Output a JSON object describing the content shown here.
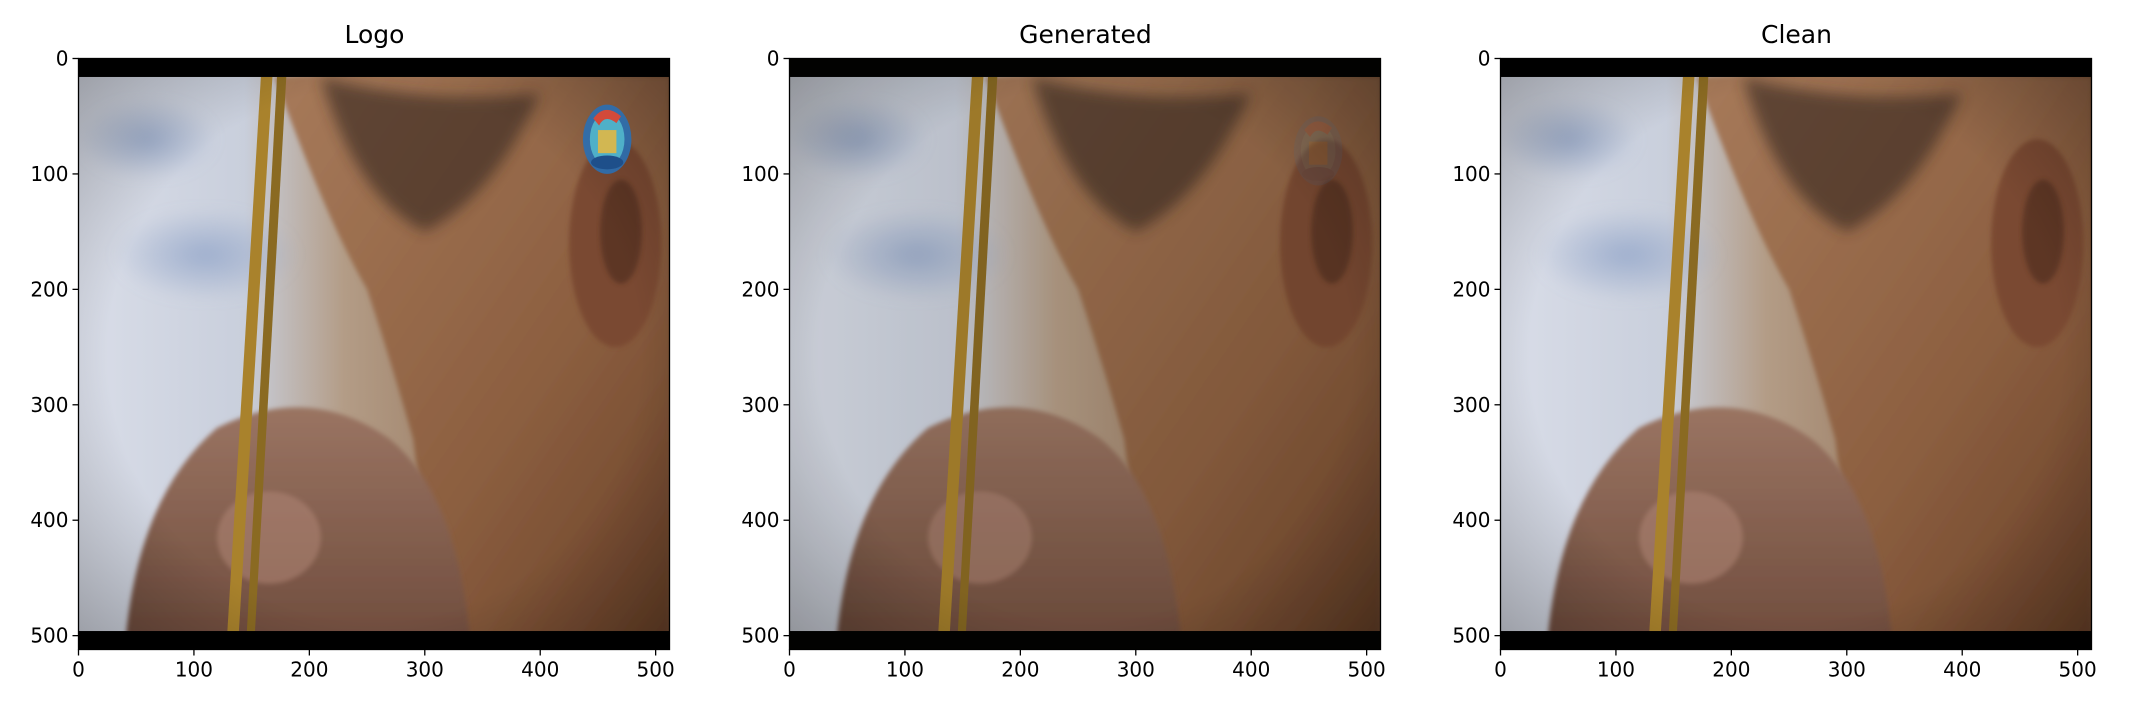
{
  "figure": {
    "background_color": "#ffffff",
    "axis_color": "#000000",
    "letterbox_color": "#000000"
  },
  "chart_data": [
    {
      "type": "image",
      "title": "Logo",
      "xlabel": "",
      "ylabel": "",
      "xlim": [
        0,
        512
      ],
      "ylim": [
        512,
        0
      ],
      "xticks": [
        0,
        100,
        200,
        300,
        400,
        500
      ],
      "yticks": [
        0,
        100,
        200,
        300,
        400,
        500
      ],
      "image_content": "close-up photo of a person's face in profile holding a brush, with a colorful circular logo near the ear",
      "logo_visible": true
    },
    {
      "type": "image",
      "title": "Generated",
      "xlabel": "",
      "ylabel": "",
      "xlim": [
        0,
        512
      ],
      "ylim": [
        512,
        0
      ],
      "xticks": [
        0,
        100,
        200,
        300,
        400,
        500
      ],
      "yticks": [
        0,
        100,
        200,
        300,
        400,
        500
      ],
      "image_content": "same photo with the logo mostly removed, a faint trace remaining near the ear",
      "logo_visible": false
    },
    {
      "type": "image",
      "title": "Clean",
      "xlabel": "",
      "ylabel": "",
      "xlim": [
        0,
        512
      ],
      "ylim": [
        512,
        0
      ],
      "xticks": [
        0,
        100,
        200,
        300,
        400,
        500
      ],
      "yticks": [
        0,
        100,
        200,
        300,
        400,
        500
      ],
      "image_content": "same photo without any logo",
      "logo_visible": false
    }
  ]
}
